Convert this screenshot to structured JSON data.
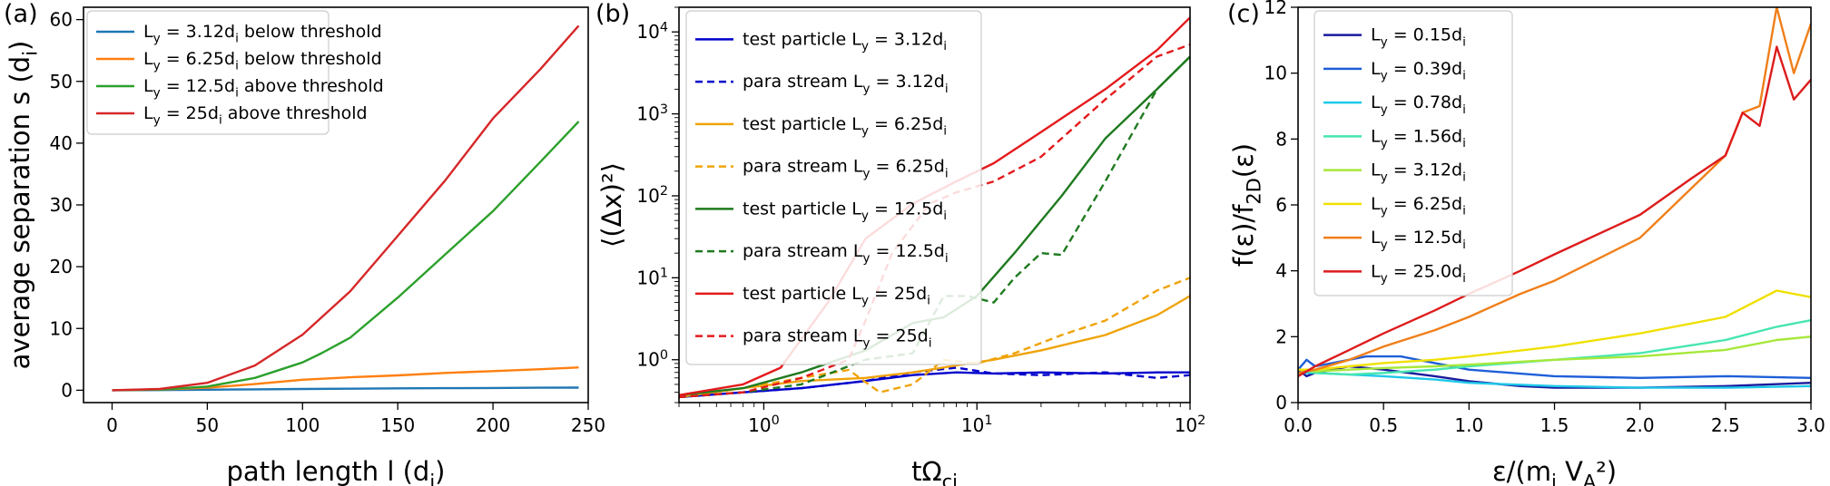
{
  "chart_data": [
    {
      "panel": "(a)",
      "type": "line",
      "xlabel": "path length l (d_i)",
      "ylabel": "average separation s (d_i)",
      "xlim": [
        -15,
        250
      ],
      "ylim": [
        -2,
        62
      ],
      "xticks": [
        0,
        50,
        100,
        150,
        200,
        250
      ],
      "xtick_labels": [
        "0",
        "50",
        "100",
        "150",
        "200",
        "250"
      ],
      "yticks": [
        0,
        10,
        20,
        30,
        40,
        50,
        60
      ],
      "ytick_labels": [
        "0",
        "10",
        "20",
        "30",
        "40",
        "50",
        "60"
      ],
      "legend_position": "top-left",
      "series": [
        {
          "name": "L_y = 3.12d_i below threshold",
          "color": "#1f77b4",
          "dash": "",
          "x": [
            0,
            25,
            50,
            75,
            100,
            125,
            150,
            175,
            200,
            225,
            245
          ],
          "y": [
            0,
            0.02,
            0.08,
            0.15,
            0.2,
            0.25,
            0.3,
            0.33,
            0.37,
            0.4,
            0.42
          ]
        },
        {
          "name": "L_y = 6.25d_i below threshold",
          "color": "#ff7f0e",
          "dash": "",
          "x": [
            0,
            25,
            50,
            75,
            100,
            125,
            150,
            175,
            200,
            225,
            245
          ],
          "y": [
            0,
            0.1,
            0.4,
            1.0,
            1.7,
            2.1,
            2.4,
            2.8,
            3.1,
            3.4,
            3.7
          ]
        },
        {
          "name": "L_y = 12.5d_i above threshold",
          "color": "#2ca02c",
          "dash": "",
          "x": [
            0,
            25,
            50,
            75,
            100,
            110,
            125,
            150,
            175,
            200,
            225,
            245
          ],
          "y": [
            0,
            0.1,
            0.6,
            2.0,
            4.5,
            6.0,
            8.5,
            15.0,
            22.0,
            29.0,
            37.0,
            43.5
          ]
        },
        {
          "name": "L_y = 25d_i above threshold",
          "color": "#d62728",
          "dash": "",
          "x": [
            0,
            25,
            50,
            75,
            100,
            125,
            150,
            175,
            200,
            225,
            245
          ],
          "y": [
            0,
            0.2,
            1.2,
            4.0,
            9.0,
            16.0,
            25.0,
            34.0,
            44.0,
            52.0,
            59.0
          ]
        }
      ]
    },
    {
      "panel": "(b)",
      "type": "line",
      "xscale": "log",
      "yscale": "log",
      "xlabel": "tΩ_ci",
      "ylabel": "⟨(Δx)²⟩",
      "xlim": [
        0.4,
        100
      ],
      "ylim": [
        0.3,
        20000
      ],
      "xticks": [
        1,
        10,
        100
      ],
      "xtick_labels": [
        "10^0",
        "10^1",
        "10^2"
      ],
      "yticks": [
        1,
        10,
        100,
        1000,
        10000
      ],
      "ytick_labels": [
        "10^0",
        "10^1",
        "10^2",
        "10^3",
        "10^4"
      ],
      "legend_position": "top-left",
      "series": [
        {
          "name": "test particle L_y = 3.12d_i",
          "color": "#0000cc",
          "dash": "",
          "x": [
            0.4,
            0.8,
            1.5,
            3,
            5,
            8,
            12,
            20,
            40,
            70,
            100
          ],
          "y": [
            0.35,
            0.4,
            0.45,
            0.55,
            0.65,
            0.7,
            0.68,
            0.7,
            0.68,
            0.7,
            0.7
          ]
        },
        {
          "name": "para stream L_y = 3.12d_i",
          "color": "#0000cc",
          "dash": "8,5",
          "x": [
            0.4,
            0.8,
            1.5,
            3,
            5,
            8,
            12,
            20,
            40,
            70,
            100
          ],
          "y": [
            0.35,
            0.4,
            0.45,
            0.55,
            0.7,
            0.8,
            0.68,
            0.65,
            0.7,
            0.6,
            0.65
          ]
        },
        {
          "name": "test particle L_y = 6.25d_i",
          "color": "#f0a30a",
          "dash": "",
          "x": [
            0.4,
            0.8,
            1.5,
            3,
            5,
            8,
            12,
            20,
            40,
            70,
            100
          ],
          "y": [
            0.35,
            0.45,
            0.55,
            0.6,
            0.7,
            0.85,
            1.0,
            1.3,
            2.0,
            3.5,
            6.0
          ]
        },
        {
          "name": "para stream L_y = 6.25d_i",
          "color": "#f0a30a",
          "dash": "8,5",
          "x": [
            0.4,
            0.8,
            1.5,
            2.5,
            3.5,
            5,
            7,
            10,
            15,
            25,
            40,
            70,
            100
          ],
          "y": [
            0.35,
            0.45,
            0.6,
            0.75,
            0.4,
            0.5,
            1.0,
            0.9,
            1.2,
            2.0,
            3.0,
            7.0,
            10.0
          ]
        },
        {
          "name": "test particle L_y = 12.5d_i",
          "color": "#1f7a1f",
          "dash": "",
          "x": [
            0.4,
            0.8,
            1.5,
            3,
            5,
            7,
            10,
            15,
            25,
            40,
            70,
            100
          ],
          "y": [
            0.37,
            0.45,
            0.7,
            1.3,
            2.8,
            3.3,
            6.0,
            20,
            100,
            500,
            2000,
            5000
          ]
        },
        {
          "name": "para stream L_y = 12.5d_i",
          "color": "#1f7a1f",
          "dash": "8,5",
          "x": [
            0.4,
            0.8,
            1.5,
            3,
            5,
            7,
            9,
            12,
            15,
            20,
            25,
            40,
            70,
            100
          ],
          "y": [
            0.35,
            0.4,
            0.5,
            1.0,
            1.2,
            6.0,
            6.0,
            5.0,
            10,
            20,
            19,
            150,
            2000,
            5000
          ]
        },
        {
          "name": "test particle L_y = 25d_i",
          "color": "#e41a1c",
          "dash": "",
          "x": [
            0.4,
            0.8,
            1.2,
            2,
            3,
            5,
            8,
            12,
            20,
            40,
            70,
            100
          ],
          "y": [
            0.37,
            0.5,
            0.8,
            5,
            30,
            80,
            150,
            250,
            600,
            2000,
            6000,
            15000
          ]
        },
        {
          "name": "para stream L_y = 25d_i",
          "color": "#e41a1c",
          "dash": "8,5",
          "x": [
            0.4,
            0.8,
            1.5,
            2.5,
            3,
            4,
            6,
            8,
            12,
            20,
            40,
            70,
            100
          ],
          "y": [
            0.35,
            0.4,
            0.6,
            1.0,
            3.0,
            20,
            80,
            110,
            150,
            300,
            1500,
            5000,
            7000
          ]
        }
      ]
    },
    {
      "panel": "(c)",
      "type": "line",
      "xlabel": "ε/(m_i V_A²)",
      "ylabel": "f(ε)/f_2D(ε)",
      "xlim": [
        0.0,
        3.0
      ],
      "ylim": [
        0,
        12
      ],
      "xticks": [
        0.0,
        0.5,
        1.0,
        1.5,
        2.0,
        2.5,
        3.0
      ],
      "xtick_labels": [
        "0.0",
        "0.5",
        "1.0",
        "1.5",
        "2.0",
        "2.5",
        "3.0"
      ],
      "yticks": [
        0,
        2,
        4,
        6,
        8,
        10,
        12
      ],
      "ytick_labels": [
        "0",
        "2",
        "4",
        "6",
        "8",
        "10",
        "12"
      ],
      "legend_position": "top-left",
      "series": [
        {
          "name": "L_y = 0.15d_i",
          "color": "#1a1a9e",
          "dash": "",
          "x": [
            0,
            0.05,
            0.1,
            0.2,
            0.3,
            0.5,
            0.8,
            1.0,
            1.3,
            1.5,
            2.0,
            2.5,
            3.0
          ],
          "y": [
            1.0,
            0.8,
            0.9,
            1.0,
            1.1,
            1.0,
            0.8,
            0.65,
            0.5,
            0.45,
            0.45,
            0.5,
            0.6
          ]
        },
        {
          "name": "L_y = 0.39d_i",
          "color": "#1f5fd8",
          "dash": "",
          "x": [
            0,
            0.05,
            0.1,
            0.2,
            0.4,
            0.6,
            0.8,
            1.0,
            1.5,
            2.0,
            2.5,
            3.0
          ],
          "y": [
            1.0,
            1.3,
            1.1,
            1.2,
            1.4,
            1.4,
            1.2,
            1.0,
            0.8,
            0.75,
            0.8,
            0.75
          ]
        },
        {
          "name": "L_y = 0.78d_i",
          "color": "#1ec8e8",
          "dash": "",
          "x": [
            0,
            0.1,
            0.3,
            0.5,
            0.8,
            1.0,
            1.5,
            2.0,
            2.5,
            3.0
          ],
          "y": [
            0.9,
            0.9,
            0.85,
            0.8,
            0.7,
            0.6,
            0.5,
            0.45,
            0.45,
            0.5
          ]
        },
        {
          "name": "L_y = 1.56d_i",
          "color": "#46e6b0",
          "dash": "",
          "x": [
            0,
            0.1,
            0.3,
            0.5,
            0.8,
            1.0,
            1.5,
            2.0,
            2.5,
            2.8,
            3.0
          ],
          "y": [
            1.0,
            0.9,
            0.85,
            0.9,
            1.0,
            1.1,
            1.3,
            1.5,
            1.9,
            2.3,
            2.5
          ]
        },
        {
          "name": "L_y = 3.12d_i",
          "color": "#a6e83a",
          "dash": "",
          "x": [
            0,
            0.1,
            0.3,
            0.5,
            0.8,
            1.0,
            1.5,
            2.0,
            2.5,
            2.8,
            3.0
          ],
          "y": [
            1.0,
            0.95,
            1.0,
            1.05,
            1.1,
            1.15,
            1.3,
            1.4,
            1.6,
            1.9,
            2.0
          ]
        },
        {
          "name": "L_y = 6.25d_i",
          "color": "#f0e000",
          "dash": "",
          "x": [
            0,
            0.1,
            0.3,
            0.5,
            0.8,
            1.0,
            1.5,
            2.0,
            2.5,
            2.8,
            3.0
          ],
          "y": [
            1.0,
            1.0,
            1.1,
            1.2,
            1.3,
            1.4,
            1.7,
            2.1,
            2.6,
            3.4,
            3.2
          ]
        },
        {
          "name": "L_y = 12.5d_i",
          "color": "#f07f1a",
          "dash": "",
          "x": [
            0,
            0.1,
            0.3,
            0.5,
            0.8,
            1.0,
            1.3,
            1.5,
            2.0,
            2.3,
            2.5,
            2.6,
            2.7,
            2.8,
            2.9,
            3.0
          ],
          "y": [
            0.9,
            1.0,
            1.3,
            1.7,
            2.2,
            2.6,
            3.3,
            3.7,
            5.0,
            6.5,
            7.5,
            8.8,
            9.0,
            12.0,
            10.0,
            11.5
          ]
        },
        {
          "name": "L_y = 25.0d_i",
          "color": "#dd1c1c",
          "dash": "",
          "x": [
            0,
            0.1,
            0.3,
            0.5,
            0.8,
            1.0,
            1.3,
            1.5,
            2.0,
            2.3,
            2.5,
            2.6,
            2.7,
            2.8,
            2.9,
            3.0
          ],
          "y": [
            0.8,
            1.1,
            1.6,
            2.1,
            2.8,
            3.3,
            4.0,
            4.5,
            5.7,
            6.8,
            7.5,
            8.8,
            8.4,
            10.8,
            9.2,
            9.8
          ]
        }
      ]
    }
  ]
}
